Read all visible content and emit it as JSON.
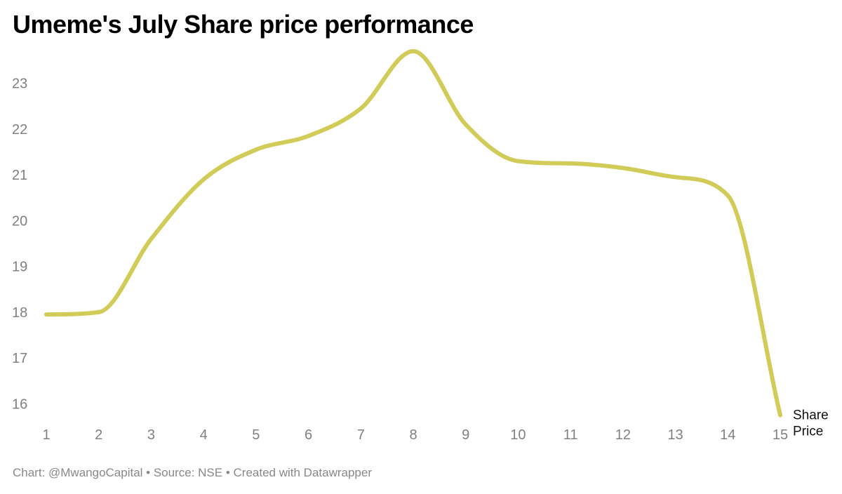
{
  "chart_data": {
    "type": "line",
    "title": "Umeme's July Share price performance",
    "xlabel": "",
    "ylabel": "",
    "x": [
      1,
      2,
      3,
      4,
      5,
      6,
      7,
      8,
      9,
      10,
      11,
      12,
      13,
      14,
      15
    ],
    "xlim": [
      1,
      15
    ],
    "ylim": [
      15.5,
      23.9
    ],
    "yticks": [
      16,
      17,
      18,
      19,
      20,
      21,
      22,
      23
    ],
    "grid": false,
    "legend": "none",
    "series": [
      {
        "name": "Share Price",
        "label_lines": [
          "Share",
          "Price"
        ],
        "color": "#d1cb58",
        "values": [
          17.95,
          18.0,
          19.6,
          20.9,
          21.55,
          21.85,
          22.45,
          23.7,
          22.1,
          21.3,
          21.25,
          21.15,
          20.95,
          20.55,
          15.75
        ]
      }
    ]
  },
  "footer": {
    "text": "Chart: @MwangoCapital • Source: NSE • Created with Datawrapper"
  }
}
